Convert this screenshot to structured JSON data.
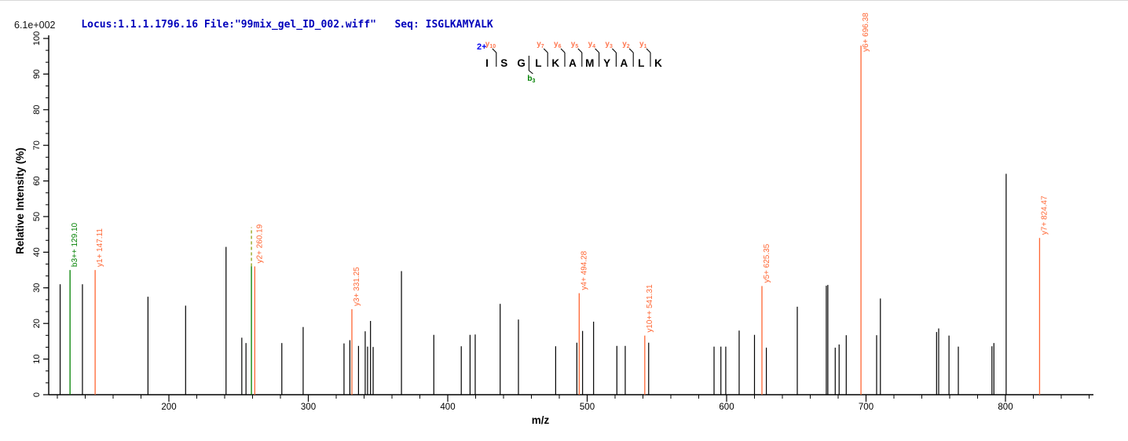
{
  "header": {
    "locus_file_text": "Locus:1.1.1.1796.16 File:\"99mix_gel_ID_002.wiff\"",
    "seq_label": "Seq:",
    "seq_value": "ISGLKAMYALK",
    "text_color": "#0000bb"
  },
  "max_intensity_label": "6.1e+002",
  "peptide": {
    "charge_label": "2+",
    "charge_color": "#0000ee",
    "residues": [
      "I",
      "S",
      "G",
      "L",
      "K",
      "A",
      "M",
      "Y",
      "A",
      "L",
      "K"
    ],
    "y_marks": [
      {
        "before_index": 1,
        "ion": "y",
        "sub": "10"
      },
      {
        "before_index": 4,
        "ion": "y",
        "sub": "7"
      },
      {
        "before_index": 5,
        "ion": "y",
        "sub": "6"
      },
      {
        "before_index": 6,
        "ion": "y",
        "sub": "5"
      },
      {
        "before_index": 7,
        "ion": "y",
        "sub": "4"
      },
      {
        "before_index": 8,
        "ion": "y",
        "sub": "3"
      },
      {
        "before_index": 9,
        "ion": "y",
        "sub": "2"
      },
      {
        "before_index": 10,
        "ion": "y",
        "sub": "1"
      }
    ],
    "b_marks": [
      {
        "before_index": 3,
        "ion": "b",
        "sub": "3"
      }
    ],
    "y_mark_color": "#ff7750",
    "b_mark_color": "#008000"
  },
  "chart_data": {
    "type": "bar",
    "subtype": "ms2-stick-spectrum",
    "title": "Locus:1.1.1.1796.16 File:\"99mix_gel_ID_002.wiff\"  Seq: ISGLKAMYALK",
    "xlabel": "m/z",
    "ylabel": "Relative  Intensity (%)",
    "xlim": [
      113,
      862
    ],
    "ylim": [
      0,
      100
    ],
    "x_major_ticks": [
      200,
      300,
      400,
      500,
      600,
      700,
      800
    ],
    "x_minor_step": 20,
    "y_major_ticks": [
      0,
      10,
      20,
      30,
      40,
      50,
      60,
      70,
      80,
      90,
      100
    ],
    "y_minor_divisions_per_major": 3,
    "base_peak_intensity_label": "6.1e+002",
    "grid": false,
    "legend": "none",
    "colors": {
      "peak": "#000000",
      "y_ion": "#ff6633",
      "b_ion": "#008000",
      "dashed": "#889900"
    },
    "peaks_black": [
      [
        122,
        31
      ],
      [
        138,
        31
      ],
      [
        185,
        27.5
      ],
      [
        212,
        25
      ],
      [
        241,
        41.5
      ],
      [
        252.3,
        16
      ],
      [
        255.3,
        14.5
      ],
      [
        281,
        14.5
      ],
      [
        296.3,
        19
      ],
      [
        325.6,
        14.4
      ],
      [
        329.8,
        15.3
      ],
      [
        336,
        13.7
      ],
      [
        340.8,
        17.8
      ],
      [
        342.5,
        13.5
      ],
      [
        344.6,
        20.7
      ],
      [
        346.5,
        13.4
      ],
      [
        366.8,
        34.7
      ],
      [
        390,
        16.8
      ],
      [
        409.7,
        13.6
      ],
      [
        416,
        16.8
      ],
      [
        419.7,
        16.9
      ],
      [
        437.6,
        25.5
      ],
      [
        450.7,
        21.1
      ],
      [
        477.4,
        13.6
      ],
      [
        492.6,
        14.6
      ],
      [
        496.7,
        17.9
      ],
      [
        504.6,
        20.5
      ],
      [
        521.3,
        13.7
      ],
      [
        527.3,
        13.7
      ],
      [
        544.1,
        14.6
      ],
      [
        591,
        13.5
      ],
      [
        595.9,
        13.5
      ],
      [
        599.4,
        13.5
      ],
      [
        609,
        18
      ],
      [
        620,
        16.8
      ],
      [
        628.5,
        13.2
      ],
      [
        650.7,
        24.7
      ],
      [
        671.5,
        30.6
      ],
      [
        672.6,
        30.8
      ],
      [
        677.9,
        13.2
      ],
      [
        680.7,
        14.1
      ],
      [
        685.8,
        16.7
      ],
      [
        707.6,
        16.7
      ],
      [
        710.3,
        27
      ],
      [
        750.6,
        17.6
      ],
      [
        752.1,
        18.6
      ],
      [
        759.5,
        16.6
      ],
      [
        766.2,
        13.5
      ],
      [
        790.3,
        13.6
      ],
      [
        791.7,
        14.5
      ],
      [
        800.5,
        62
      ]
    ],
    "peaks_annotated": [
      {
        "ion": "b3++",
        "label": "b3++ 129.10",
        "mz": 129.1,
        "intensity": 35,
        "color_key": "b_ion"
      },
      {
        "ion": "y1+",
        "label": "y1+ 147.11",
        "mz": 147.11,
        "intensity": 35,
        "color_key": "y_ion"
      },
      {
        "ion": "",
        "label": "",
        "mz": 259.2,
        "intensity": 36,
        "color_key": "b_ion",
        "dashed_to": 47
      },
      {
        "ion": "y2+",
        "label": "y2+ 260.19",
        "mz": 260.19,
        "intensity": 36,
        "color_key": "y_ion",
        "draw_mz": 261.6
      },
      {
        "ion": "y3+",
        "label": "y3+ 331.25",
        "mz": 331.25,
        "intensity": 24,
        "color_key": "y_ion"
      },
      {
        "ion": "y4+",
        "label": "y4+ 494.28",
        "mz": 494.28,
        "intensity": 28.5,
        "color_key": "y_ion"
      },
      {
        "ion": "y10++",
        "label": "y10++ 541.31",
        "mz": 541.31,
        "intensity": 16.6,
        "color_key": "y_ion"
      },
      {
        "ion": "y5+",
        "label": "y5+ 625.35",
        "mz": 625.35,
        "intensity": 30.5,
        "color_key": "y_ion"
      },
      {
        "ion": "y6+",
        "label": "y6+ 696.38",
        "mz": 696.38,
        "intensity": 98,
        "color_key": "y_ion"
      },
      {
        "ion": "y7+",
        "label": "y7+ 824.47",
        "mz": 824.47,
        "intensity": 44,
        "color_key": "y_ion"
      }
    ]
  }
}
